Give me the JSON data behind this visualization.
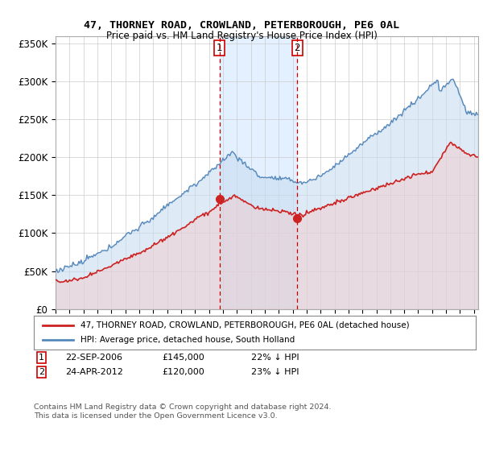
{
  "title": "47, THORNEY ROAD, CROWLAND, PETERBOROUGH, PE6 0AL",
  "subtitle": "Price paid vs. HM Land Registry's House Price Index (HPI)",
  "background_color": "#ffffff",
  "plot_bg_color": "#ffffff",
  "grid_color": "#cccccc",
  "hpi_color": "#5588bb",
  "hpi_fill_color": "#c8ddf0",
  "price_color": "#cc2222",
  "price_fill_color": "#f0cccc",
  "shade_color": "#ddeeff",
  "ylim": [
    0,
    360000
  ],
  "yticks": [
    0,
    50000,
    100000,
    150000,
    200000,
    250000,
    300000,
    350000
  ],
  "sale1_date": "22-SEP-2006",
  "sale1_price": 145000,
  "sale1_hpi_pct": "22%",
  "sale2_date": "24-APR-2012",
  "sale2_price": 120000,
  "sale2_hpi_pct": "23%",
  "legend_line1": "47, THORNEY ROAD, CROWLAND, PETERBOROUGH, PE6 0AL (detached house)",
  "legend_line2": "HPI: Average price, detached house, South Holland",
  "footer": "Contains HM Land Registry data © Crown copyright and database right 2024.\nThis data is licensed under the Open Government Licence v3.0.",
  "xstart": 1995.0,
  "xend": 2025.3
}
